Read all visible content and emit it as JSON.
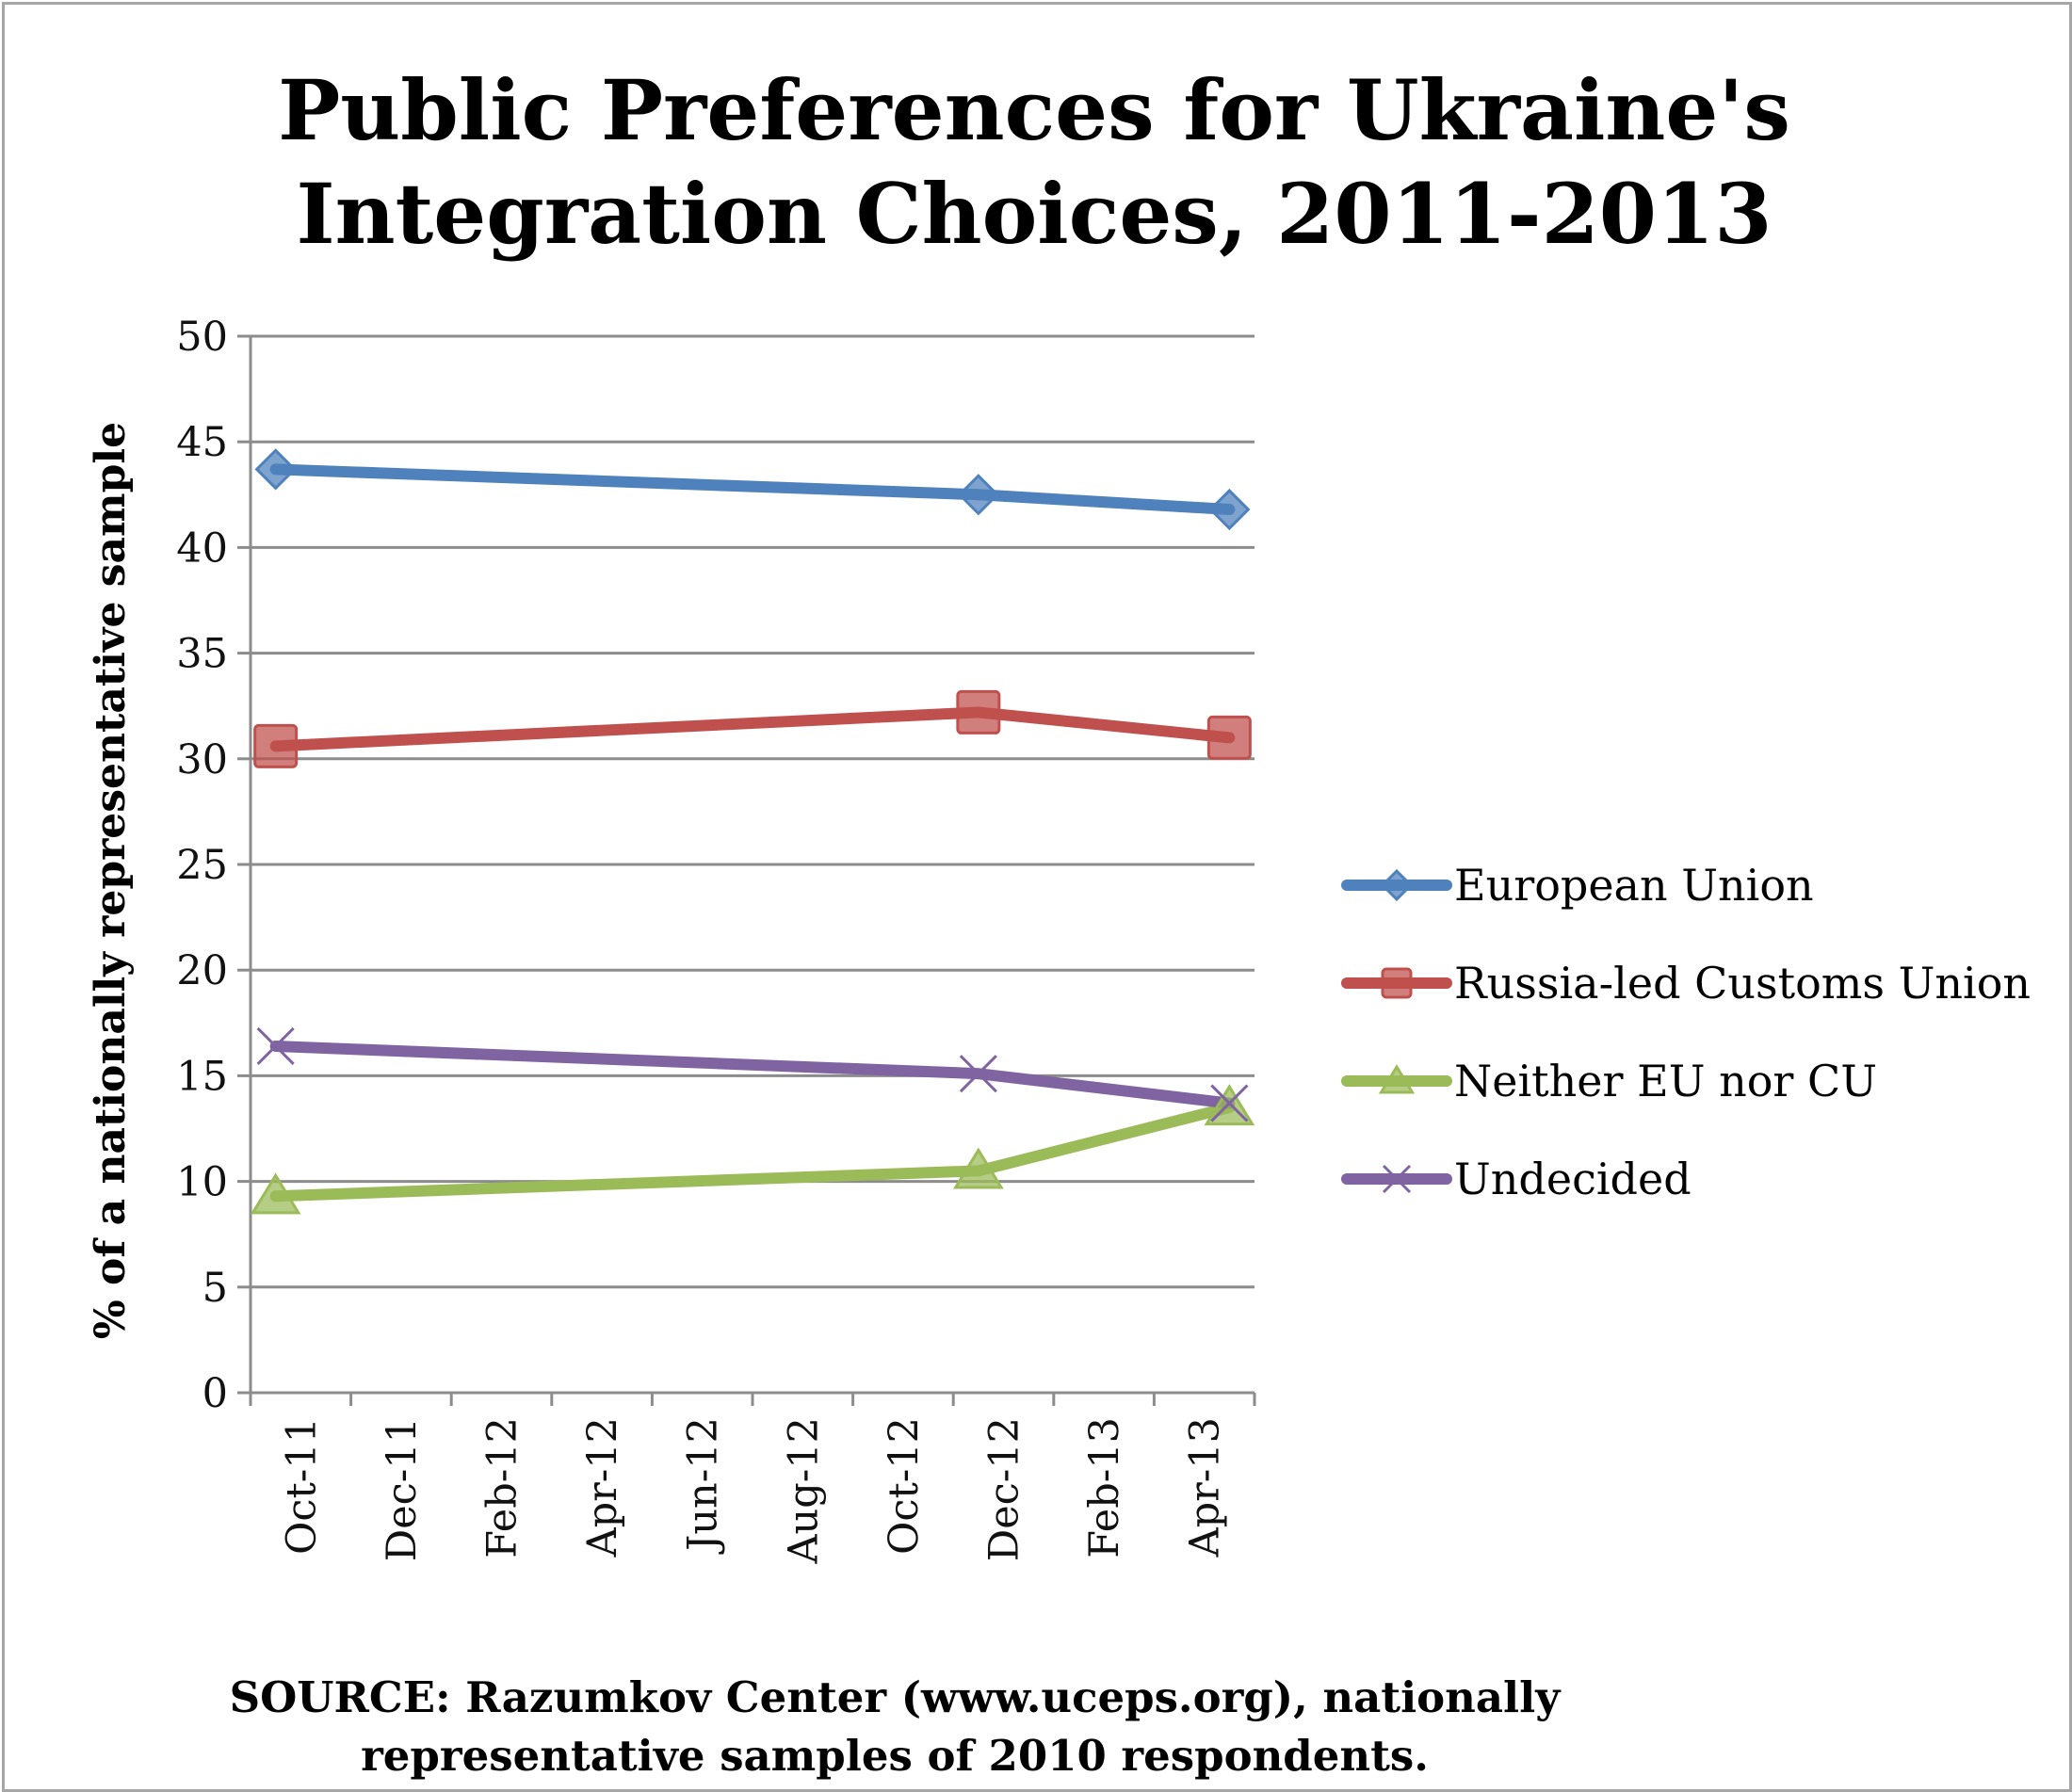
{
  "chart_data": {
    "type": "line",
    "title_lines": [
      "Public Preferences for Ukraine's",
      "Integration Choices, 2011-2013"
    ],
    "xlabel": "",
    "ylabel": "% of a nationally representative sample",
    "ylim": [
      0,
      50
    ],
    "yticks": [
      "0",
      "5",
      "10",
      "15",
      "20",
      "25",
      "30",
      "35",
      "40",
      "45",
      "50"
    ],
    "xticks": [
      "Oct-11",
      "Dec-11",
      "Feb-12",
      "Apr-12",
      "Jun-12",
      "Aug-12",
      "Oct-12",
      "Dec-12",
      "Feb-13",
      "Apr-13"
    ],
    "x": [
      "2011-10",
      "2012-12",
      "2013-05"
    ],
    "grid": true,
    "legend_position": "right",
    "series": [
      {
        "name": "European Union",
        "values": [
          43.7,
          42.5,
          41.8
        ],
        "color": "#4f81bd",
        "marker": "diamond"
      },
      {
        "name": "Russia-led Customs Union",
        "values": [
          30.6,
          32.2,
          31.0
        ],
        "color": "#c0504d",
        "marker": "square"
      },
      {
        "name": "Neither EU nor CU",
        "values": [
          9.3,
          10.5,
          13.5
        ],
        "color": "#9bbb59",
        "marker": "triangle"
      },
      {
        "name": "Undecided",
        "values": [
          16.4,
          15.1,
          13.7
        ],
        "color": "#8064a2",
        "marker": "x"
      }
    ],
    "source_lines": [
      "SOURCE: Razumkov Center (www.uceps.org),  nationally",
      "representative samples of 2010 respondents."
    ]
  }
}
